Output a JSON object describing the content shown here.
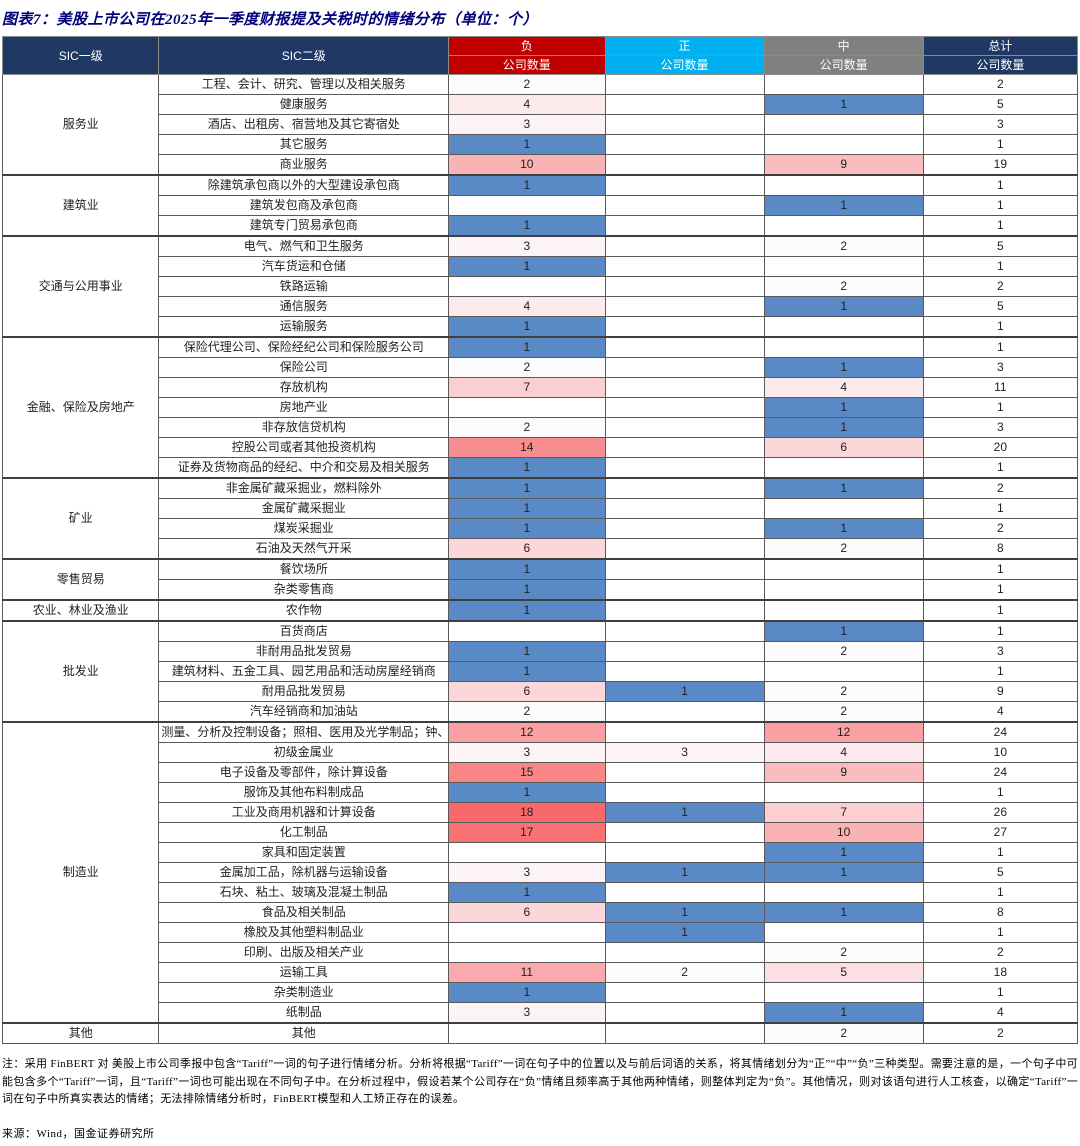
{
  "title": "图表7：美股上市公司在2025年一季度财报提及关税时的情绪分布（单位：个）",
  "note": "注：采用 FinBERT 对 美股上市公司季报中包含“Tariff”一词的句子进行情绪分析。分析将根据“Tariff”一词在句子中的位置以及与前后词语的关系，将其情绪划分为“正”“中”“负”三种类型。需要注意的是，一个句子中可能包含多个“Tariff”一词，且“Tariff”一词也可能出现在不同句子中。在分析过程中，假设若某个公司存在“负”情绪且频率高于其他两种情绪，则整体判定为“负”。其他情况，则对该语句进行人工核查，以确定“Tariff”一词在句子中所真实表达的情绪；无法排除情绪分析时，FinBERT模型和人工矫正存在的误差。",
  "source": "来源：Wind，国金证券研究所",
  "chart_data": {
    "type": "table",
    "title": "图表7：美股上市公司在2025年一季度财报提及关税时的情绪分布（单位：个）",
    "header": {
      "sic1": "SIC一级",
      "sic2": "SIC二级"
    },
    "sentiments": [
      {
        "key": "neg",
        "label": "负",
        "sub": "公司数量",
        "color": "#C00000"
      },
      {
        "key": "pos",
        "label": "正",
        "sub": "公司数量",
        "color": "#00B0F0"
      },
      {
        "key": "mid",
        "label": "中",
        "sub": "公司数量",
        "color": "#808080"
      },
      {
        "key": "total",
        "label": "总计",
        "sub": "公司数量",
        "color": "#1F3864"
      }
    ],
    "color_scale": {
      "min_value": 1,
      "min_color": "#5A8AC6",
      "mid_value": 2,
      "mid_color": "#FCFCFF",
      "max_value": 18,
      "max_color": "#F8696B"
    },
    "sections": [
      {
        "sic1": "服务业",
        "rows": [
          {
            "sic2": "工程、会计、研究、管理以及相关服务",
            "neg": 2,
            "pos": null,
            "mid": null,
            "total": 2
          },
          {
            "sic2": "健康服务",
            "neg": 4,
            "pos": null,
            "mid": 1,
            "total": 5
          },
          {
            "sic2": "酒店、出租房、宿营地及其它寄宿处",
            "neg": 3,
            "pos": null,
            "mid": null,
            "total": 3
          },
          {
            "sic2": "其它服务",
            "neg": 1,
            "pos": null,
            "mid": null,
            "total": 1
          },
          {
            "sic2": "商业服务",
            "neg": 10,
            "pos": null,
            "mid": 9,
            "total": 19
          }
        ]
      },
      {
        "sic1": "建筑业",
        "rows": [
          {
            "sic2": "除建筑承包商以外的大型建设承包商",
            "neg": 1,
            "pos": null,
            "mid": null,
            "total": 1
          },
          {
            "sic2": "建筑发包商及承包商",
            "neg": null,
            "pos": null,
            "mid": 1,
            "total": 1
          },
          {
            "sic2": "建筑专门贸易承包商",
            "neg": 1,
            "pos": null,
            "mid": null,
            "total": 1
          }
        ]
      },
      {
        "sic1": "交通与公用事业",
        "rows": [
          {
            "sic2": "电气、燃气和卫生服务",
            "neg": 3,
            "pos": null,
            "mid": 2,
            "total": 5
          },
          {
            "sic2": "汽车货运和仓储",
            "neg": 1,
            "pos": null,
            "mid": null,
            "total": 1
          },
          {
            "sic2": "铁路运输",
            "neg": null,
            "pos": null,
            "mid": 2,
            "total": 2
          },
          {
            "sic2": "通信服务",
            "neg": 4,
            "pos": null,
            "mid": 1,
            "total": 5
          },
          {
            "sic2": "运输服务",
            "neg": 1,
            "pos": null,
            "mid": null,
            "total": 1
          }
        ]
      },
      {
        "sic1": "金融、保险及房地产",
        "rows": [
          {
            "sic2": "保险代理公司、保险经纪公司和保险服务公司",
            "neg": 1,
            "pos": null,
            "mid": null,
            "total": 1
          },
          {
            "sic2": "保险公司",
            "neg": 2,
            "pos": null,
            "mid": 1,
            "total": 3
          },
          {
            "sic2": "存放机构",
            "neg": 7,
            "pos": null,
            "mid": 4,
            "total": 11
          },
          {
            "sic2": "房地产业",
            "neg": null,
            "pos": null,
            "mid": 1,
            "total": 1
          },
          {
            "sic2": "非存放信贷机构",
            "neg": 2,
            "pos": null,
            "mid": 1,
            "total": 3
          },
          {
            "sic2": "控股公司或者其他投资机构",
            "neg": 14,
            "pos": null,
            "mid": 6,
            "total": 20
          },
          {
            "sic2": "证券及货物商品的经纪、中介和交易及相关服务",
            "neg": 1,
            "pos": null,
            "mid": null,
            "total": 1
          }
        ]
      },
      {
        "sic1": "矿业",
        "rows": [
          {
            "sic2": "非金属矿藏采掘业，燃料除外",
            "neg": 1,
            "pos": null,
            "mid": 1,
            "total": 2
          },
          {
            "sic2": "金属矿藏采掘业",
            "neg": 1,
            "pos": null,
            "mid": null,
            "total": 1
          },
          {
            "sic2": "煤炭采掘业",
            "neg": 1,
            "pos": null,
            "mid": 1,
            "total": 2
          },
          {
            "sic2": "石油及天然气开采",
            "neg": 6,
            "pos": null,
            "mid": 2,
            "total": 8
          }
        ]
      },
      {
        "sic1": "零售贸易",
        "rows": [
          {
            "sic2": "餐饮场所",
            "neg": 1,
            "pos": null,
            "mid": null,
            "total": 1
          },
          {
            "sic2": "杂类零售商",
            "neg": 1,
            "pos": null,
            "mid": null,
            "total": 1
          }
        ]
      },
      {
        "sic1": "农业、林业及渔业",
        "rows": [
          {
            "sic2": "农作物",
            "neg": 1,
            "pos": null,
            "mid": null,
            "total": 1
          }
        ]
      },
      {
        "sic1": "批发业",
        "rows": [
          {
            "sic2": "百货商店",
            "neg": null,
            "pos": null,
            "mid": 1,
            "total": 1
          },
          {
            "sic2": "非耐用品批发贸易",
            "neg": 1,
            "pos": null,
            "mid": 2,
            "total": 3
          },
          {
            "sic2": "建筑材料、五金工具、园艺用品和活动房屋经销商",
            "neg": 1,
            "pos": null,
            "mid": null,
            "total": 1
          },
          {
            "sic2": "耐用品批发贸易",
            "neg": 6,
            "pos": 1,
            "mid": 2,
            "total": 9
          },
          {
            "sic2": "汽车经销商和加油站",
            "neg": 2,
            "pos": null,
            "mid": 2,
            "total": 4
          }
        ]
      },
      {
        "sic1": "制造业",
        "rows": [
          {
            "sic2": "测量、分析及控制设备；照相、医用及光学制品；钟、表",
            "neg": 12,
            "pos": null,
            "mid": 12,
            "total": 24
          },
          {
            "sic2": "初级金属业",
            "neg": 3,
            "pos": 3,
            "mid": 4,
            "total": 10
          },
          {
            "sic2": "电子设备及零部件，除计算设备",
            "neg": 15,
            "pos": null,
            "mid": 9,
            "total": 24
          },
          {
            "sic2": "服饰及其他布料制成品",
            "neg": 1,
            "pos": null,
            "mid": null,
            "total": 1
          },
          {
            "sic2": "工业及商用机器和计算设备",
            "neg": 18,
            "pos": 1,
            "mid": 7,
            "total": 26
          },
          {
            "sic2": "化工制品",
            "neg": 17,
            "pos": null,
            "mid": 10,
            "total": 27
          },
          {
            "sic2": "家具和固定装置",
            "neg": null,
            "pos": null,
            "mid": 1,
            "total": 1
          },
          {
            "sic2": "金属加工品，除机器与运输设备",
            "neg": 3,
            "pos": 1,
            "mid": 1,
            "total": 5
          },
          {
            "sic2": "石块、粘土、玻璃及混凝土制品",
            "neg": 1,
            "pos": null,
            "mid": null,
            "total": 1
          },
          {
            "sic2": "食品及相关制品",
            "neg": 6,
            "pos": 1,
            "mid": 1,
            "total": 8
          },
          {
            "sic2": "橡胶及其他塑料制品业",
            "neg": null,
            "pos": 1,
            "mid": null,
            "total": 1
          },
          {
            "sic2": "印刷、出版及相关产业",
            "neg": null,
            "pos": null,
            "mid": 2,
            "total": 2
          },
          {
            "sic2": "运输工具",
            "neg": 11,
            "pos": 2,
            "mid": 5,
            "total": 18
          },
          {
            "sic2": "杂类制造业",
            "neg": 1,
            "pos": null,
            "mid": null,
            "total": 1
          },
          {
            "sic2": "纸制品",
            "neg": 3,
            "pos": null,
            "mid": 1,
            "total": 4
          }
        ]
      },
      {
        "sic1": "其他",
        "rows": [
          {
            "sic2": "其他",
            "neg": null,
            "pos": null,
            "mid": 2,
            "total": 2
          }
        ]
      }
    ]
  }
}
